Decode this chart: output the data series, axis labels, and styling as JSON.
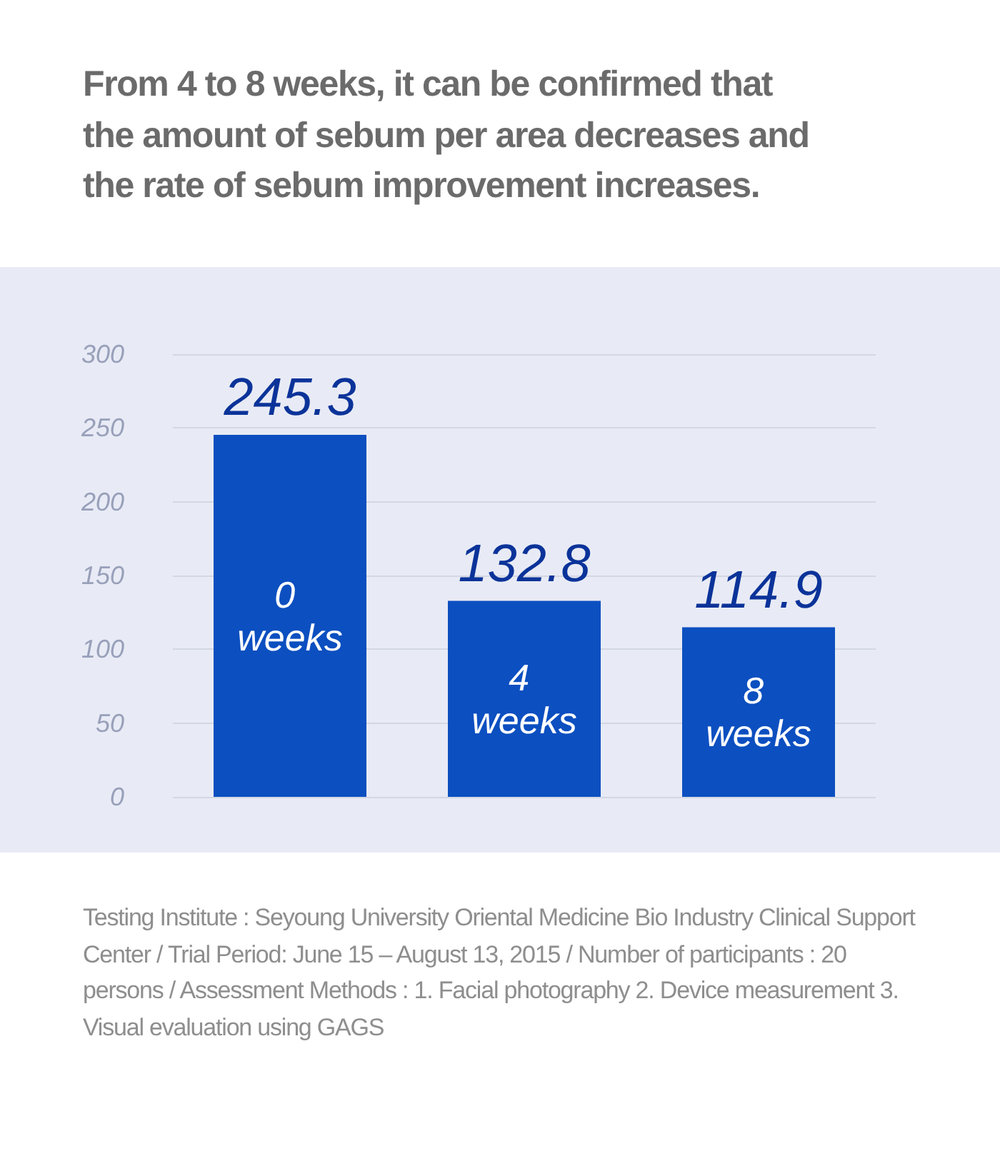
{
  "chart_data": {
    "type": "bar",
    "title": "From 4 to 8 weeks, it can be confirmed that the amount of sebum per area decreases and the rate of sebum improvement increases.",
    "categories": [
      "0 weeks",
      "4 weeks",
      "8 weeks"
    ],
    "values": [
      245.3,
      132.8,
      114.9
    ],
    "color": "#0c4fc0",
    "ylim": [
      0,
      300
    ],
    "yticks": [
      0,
      50,
      100,
      150,
      200,
      250,
      300
    ],
    "grid": "y",
    "data_labels": true,
    "annotations": [
      "Testing Institute : Seyoung University Oriental Medicine Bio Industry Clinical Support Center / Trial Period: June 15 – August 13, 2015 / Number of participants : 20 persons / Assessment Methods : 1. Facial photography 2. Device measurement 3. Visual evaluation using GAGS"
    ]
  }
}
